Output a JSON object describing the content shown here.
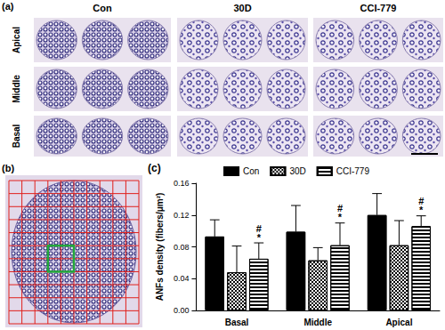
{
  "panels": {
    "a": {
      "label": "(a)",
      "columns": [
        "Con",
        "30D",
        "CCI-779"
      ],
      "rows": [
        "Apical",
        "Middle",
        "Basal"
      ]
    },
    "b": {
      "label": "(b)"
    },
    "c": {
      "label": "(c)"
    }
  },
  "chart_data": {
    "type": "bar",
    "categories": [
      "Basal",
      "Middle",
      "Apical"
    ],
    "series": [
      {
        "name": "Con",
        "color": "#000000",
        "values": [
          0.093,
          0.099,
          0.12
        ],
        "errors": [
          0.021,
          0.033,
          0.027
        ]
      },
      {
        "name": "30D",
        "color": "#ffffff",
        "values": [
          0.048,
          0.063,
          0.082
        ],
        "errors": [
          0.033,
          0.016,
          0.031
        ]
      },
      {
        "name": "CCI-779",
        "color": "#ffffff",
        "values": [
          0.065,
          0.082,
          0.106
        ],
        "errors": [
          0.02,
          0.028,
          0.013
        ]
      }
    ],
    "ylabel": "ANFs density (fibers/μm²)",
    "ylim": [
      0,
      0.16
    ],
    "yticks": [
      {
        "value": 0,
        "label": "0.00"
      },
      0.04,
      0.08,
      0.12,
      0.16
    ],
    "grid": false,
    "legend": "top",
    "annotations": [
      {
        "category": "Basal",
        "series": "CCI-779",
        "text": [
          "#",
          "*"
        ]
      },
      {
        "category": "Middle",
        "series": "CCI-779",
        "text": [
          "#",
          "*"
        ]
      },
      {
        "category": "Apical",
        "series": "CCI-779",
        "text": [
          "#",
          "*"
        ]
      }
    ]
  }
}
